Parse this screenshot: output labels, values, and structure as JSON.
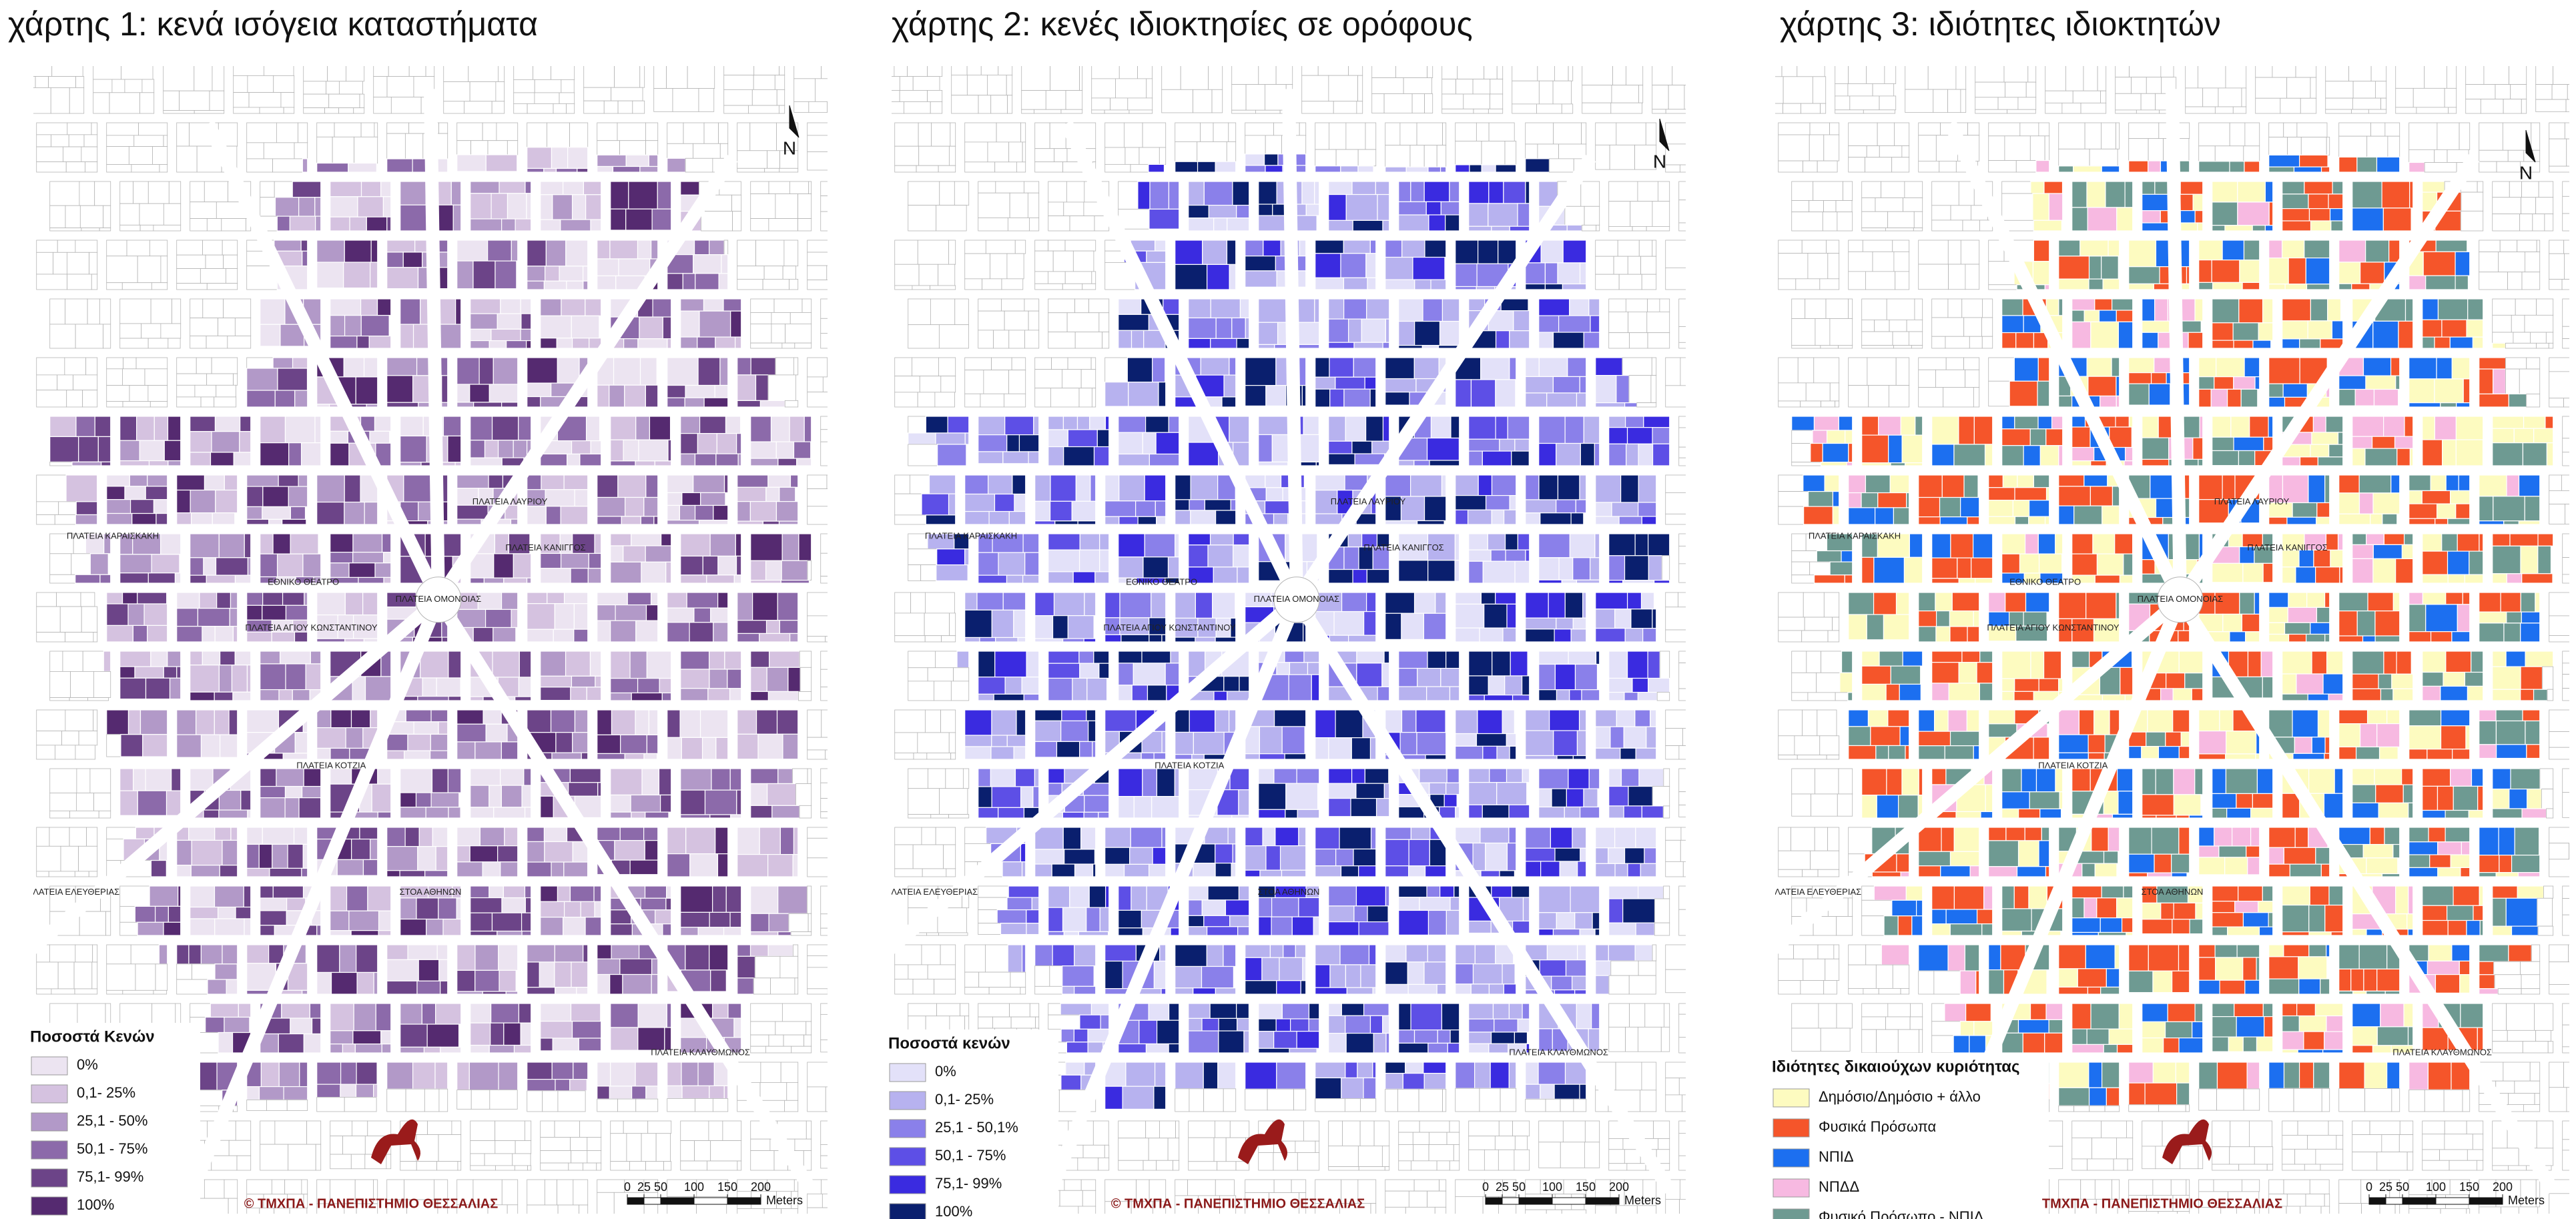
{
  "maps": [
    {
      "title": "χάρτης 1: κενά ισόγεια καταστήματα",
      "legend": {
        "title": "Ποσοστά Κενών",
        "items": [
          {
            "label": "0%",
            "color": "#ece4f1"
          },
          {
            "label": "0,1- 25%",
            "color": "#d5c2e0"
          },
          {
            "label": "25,1 - 50%",
            "color": "#b299c8"
          },
          {
            "label": "50,1 - 75%",
            "color": "#8c6aaa"
          },
          {
            "label": "75,1- 99%",
            "color": "#6c4488"
          },
          {
            "label": "100%",
            "color": "#552a70"
          }
        ]
      },
      "credit": "© ΤΜΧΠΑ - ΠΑΝΕΠΙΣΤΗΜΙΟ ΘΕΣΣΑΛΙΑΣ",
      "north": "N"
    },
    {
      "title": "χάρτης 2: κενές ιδιοκτησίες σε ορόφους",
      "legend": {
        "title": "Ποσοστά κενών",
        "items": [
          {
            "label": "0%",
            "color": "#e3e1f9"
          },
          {
            "label": "0,1- 25%",
            "color": "#b7b2ef"
          },
          {
            "label": "25,1 - 50,1%",
            "color": "#8a80ea"
          },
          {
            "label": "50,1 - 75%",
            "color": "#5d4fe6"
          },
          {
            "label": "75,1- 99%",
            "color": "#3a2be0"
          },
          {
            "label": "100%",
            "color": "#0a1f6e"
          }
        ]
      },
      "credit": "© ΤΜΧΠΑ - ΠΑΝΕΠΙΣΤΗΜΙΟ ΘΕΣΣΑΛΙΑΣ",
      "north": "N"
    },
    {
      "title": "χάρτης 3: ιδιότητες ιδιοκτητών",
      "legend": {
        "title": "Ιδιότητες δικαιούχων κυριότητας",
        "items": [
          {
            "label": "Δημόσιο/Δημόσιο + άλλο",
            "color": "#fdfbc0"
          },
          {
            "label": "Φυσικά Πρόσωπα",
            "color": "#f5552a"
          },
          {
            "label": "ΝΠΙΔ",
            "color": "#1c6ff0"
          },
          {
            "label": "ΝΠΔΔ",
            "color": "#f7b9e1"
          },
          {
            "label": "Φυσικό Πρόσωπο - ΝΠΙΔ",
            "color": "#6e9a92"
          }
        ]
      },
      "credit": "ΤΜΧΠΑ - ΠΑΝΕΠΙΣΤΗΜΙΟ ΘΕΣΣΑΛΙΑΣ",
      "north": "N"
    }
  ],
  "scale": {
    "ticks": [
      0,
      25,
      50,
      100,
      150,
      200
    ],
    "unit": "Meters"
  },
  "place_labels": [
    "ΠΛΑΤΕΙΑ ΟΜΟΝΟΙΑΣ",
    "ΠΛΑΤΕΙΑ ΚΑΝΙΓΓΟΣ",
    "ΠΛΑΤΕΙΑ ΚΟΤΖΙΑ",
    "ΠΛΑΤΕΙΑ ΚΛΑΥΘΜΩΝΟΣ",
    "ΕΘΝΙΚΟ ΘΕΑΤΡΟ",
    "ΠΛΑΤΕΙΑ ΚΑΡΑΙΣΚΑΚΗ",
    "ΠΛΑΤΕΙΑ ΑΓΙΟΥ ΚΩΝΣΤΑΝΤΙΝΟΥ",
    "ΠΛΑΤΕΙΑ ΕΛΕΥΘΕΡΙΑΣ",
    "ΠΛΑΤΕΙΑ ΛΑΥΡΙΟΥ",
    "ΣΤΟΑ ΑΘΗΝΩΝ"
  ]
}
